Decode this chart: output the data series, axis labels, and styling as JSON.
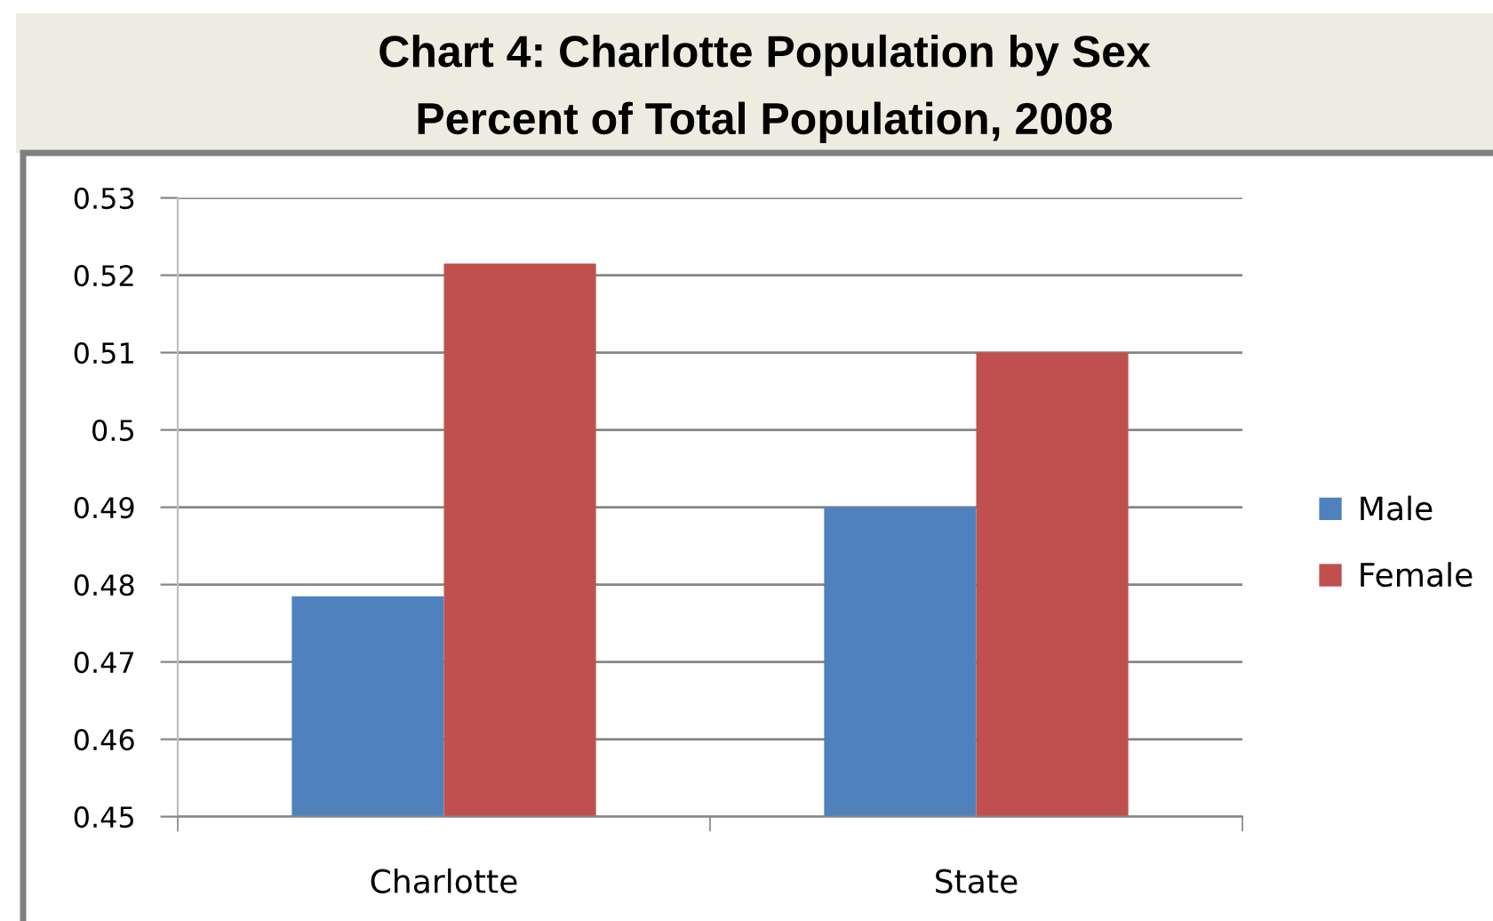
{
  "chart_data": {
    "type": "bar",
    "title": "Chart 4: Charlotte Population by Sex\nPercent of Total Population, 2008",
    "categories": [
      "Charlotte",
      "State"
    ],
    "series": [
      {
        "name": "Male",
        "color": "#4f81bd",
        "values": [
          0.4785,
          0.49
        ]
      },
      {
        "name": "Female",
        "color": "#c0504d",
        "values": [
          0.5215,
          0.51
        ]
      }
    ],
    "ylim": [
      0.45,
      0.53
    ],
    "yticks": [
      0.45,
      0.46,
      0.47,
      0.48,
      0.49,
      0.5,
      0.51,
      0.52,
      0.53
    ],
    "grid": "y",
    "legend": "right"
  }
}
